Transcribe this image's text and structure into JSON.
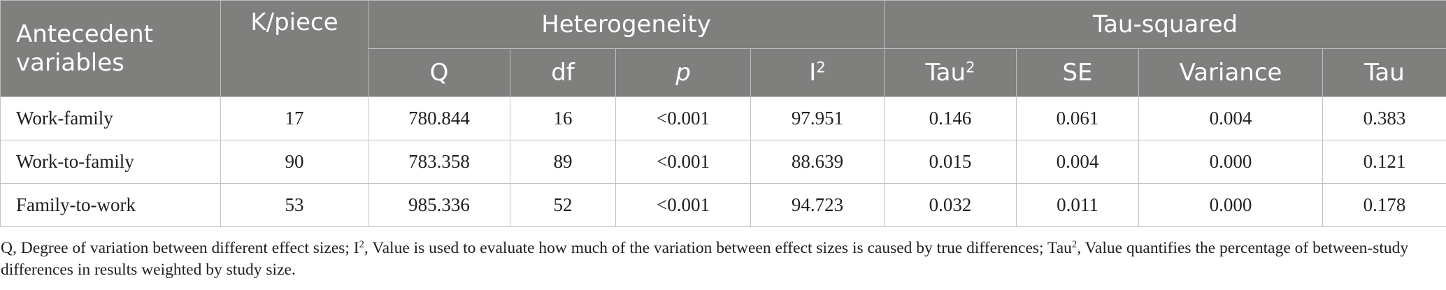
{
  "table": {
    "header": {
      "antecedent": "Antecedent variables",
      "k": "K/piece",
      "heterogeneity": "Heterogeneity",
      "tau_squared": "Tau-squared",
      "q": "Q",
      "df": "df",
      "p": "p",
      "i_base": "I",
      "i_sup": "2",
      "tau2_base": "Tau",
      "tau2_sup": "2",
      "se": "SE",
      "variance": "Variance",
      "tau": "Tau"
    },
    "rows": [
      {
        "variable": "Work-family",
        "k": "17",
        "q": "780.844",
        "df": "16",
        "p": "<0.001",
        "i2": "97.951",
        "tau2": "0.146",
        "se": "0.061",
        "variance": "0.004",
        "tau": "0.383"
      },
      {
        "variable": "Work-to-family",
        "k": "90",
        "q": "783.358",
        "df": "89",
        "p": "<0.001",
        "i2": "88.639",
        "tau2": "0.015",
        "se": "0.004",
        "variance": "0.000",
        "tau": "0.121"
      },
      {
        "variable": "Family-to-work",
        "k": "53",
        "q": "985.336",
        "df": "52",
        "p": "<0.001",
        "i2": "94.723",
        "tau2": "0.032",
        "se": "0.011",
        "variance": "0.000",
        "tau": "0.178"
      }
    ]
  },
  "footnote": {
    "part1": "Q, Degree of variation between different effect sizes; I",
    "sup1": "2",
    "part2": ", Value is used to evaluate how much of the variation between effect sizes is caused by true differences; Tau",
    "sup2": "2",
    "part3": ", Value quantifies the percentage of between-study differences in results weighted by study size."
  }
}
